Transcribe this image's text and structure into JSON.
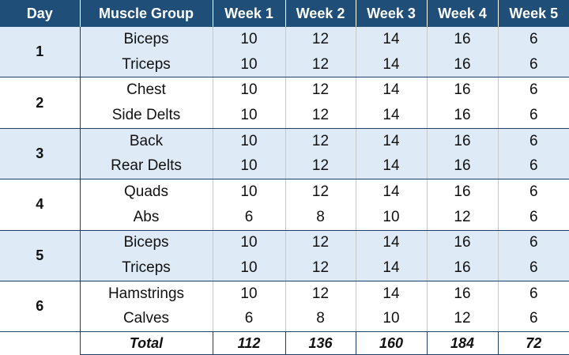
{
  "headers": [
    "Day",
    "Muscle Group",
    "Week 1",
    "Week 2",
    "Week 3",
    "Week 4",
    "Week 5"
  ],
  "days": [
    {
      "day": "1",
      "rows": [
        {
          "muscle": "Biceps",
          "weeks": [
            10,
            12,
            14,
            16,
            6
          ]
        },
        {
          "muscle": "Triceps",
          "weeks": [
            10,
            12,
            14,
            16,
            6
          ]
        }
      ]
    },
    {
      "day": "2",
      "rows": [
        {
          "muscle": "Chest",
          "weeks": [
            10,
            12,
            14,
            16,
            6
          ]
        },
        {
          "muscle": "Side Delts",
          "weeks": [
            10,
            12,
            14,
            16,
            6
          ]
        }
      ]
    },
    {
      "day": "3",
      "rows": [
        {
          "muscle": "Back",
          "weeks": [
            10,
            12,
            14,
            16,
            6
          ]
        },
        {
          "muscle": "Rear Delts",
          "weeks": [
            10,
            12,
            14,
            16,
            6
          ]
        }
      ]
    },
    {
      "day": "4",
      "rows": [
        {
          "muscle": "Quads",
          "weeks": [
            10,
            12,
            14,
            16,
            6
          ]
        },
        {
          "muscle": "Abs",
          "weeks": [
            6,
            8,
            10,
            12,
            6
          ]
        }
      ]
    },
    {
      "day": "5",
      "rows": [
        {
          "muscle": "Biceps",
          "weeks": [
            10,
            12,
            14,
            16,
            6
          ]
        },
        {
          "muscle": "Triceps",
          "weeks": [
            10,
            12,
            14,
            16,
            6
          ]
        }
      ]
    },
    {
      "day": "6",
      "rows": [
        {
          "muscle": "Hamstrings",
          "weeks": [
            10,
            12,
            14,
            16,
            6
          ]
        },
        {
          "muscle": "Calves",
          "weeks": [
            6,
            8,
            10,
            12,
            6
          ]
        }
      ]
    }
  ],
  "total": {
    "label": "Total",
    "weeks": [
      112,
      136,
      160,
      184,
      72
    ]
  },
  "colors": {
    "header_bg": "#1f4e79",
    "band_bg": "#deebf7",
    "border": "#1f3f66"
  }
}
